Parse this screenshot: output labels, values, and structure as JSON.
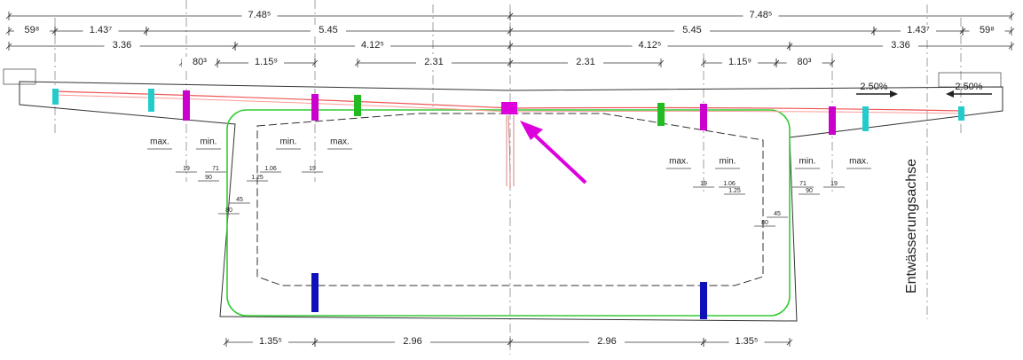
{
  "dimensions": {
    "overall": [
      "7.48⁵",
      "7.48⁵"
    ],
    "segments": [
      "59⁸",
      "1.43⁷",
      "5.45",
      "5.45",
      "1.43⁷",
      "59⁸"
    ],
    "webs": [
      "3.36",
      "4.12⁵",
      "4.12⁵",
      "3.36"
    ],
    "inner": [
      "80³",
      "1.15⁹",
      "2.31",
      "2.31",
      "1.15⁹",
      "80³"
    ],
    "bottom": [
      "1.35⁵",
      "2.96",
      "2.96",
      "1.35⁵"
    ]
  },
  "slopes": [
    "2.50%",
    "2.50%"
  ],
  "tendon_limits": [
    "max.",
    "min.",
    "min.",
    "max.",
    "max.",
    "min.",
    "min.",
    "max."
  ],
  "detail_left": [
    "19",
    "71",
    "1.06",
    "19",
    "90",
    "1.25",
    "45",
    "80"
  ],
  "detail_right": [
    "19",
    "1.06",
    "71",
    "19",
    "1.25",
    "90",
    "45",
    "80"
  ],
  "axis_label": "Entwässerungsachse"
}
